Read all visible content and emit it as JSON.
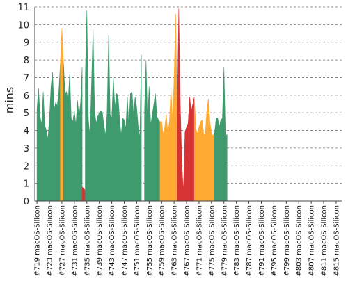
{
  "chart_data": {
    "type": "area",
    "title": "",
    "xlabel": "",
    "ylabel": "mins",
    "ylim": [
      0,
      11
    ],
    "yticks": [
      0,
      1,
      2,
      3,
      4,
      5,
      6,
      7,
      8,
      9,
      10,
      11
    ],
    "grid": true,
    "legend": "none",
    "xlim": [
      718.3,
      816.8
    ],
    "x_tick_labels": [
      {
        "x": 719,
        "label": "#719 macOS-Silicon"
      },
      {
        "x": 723,
        "label": "#723 macOS-Silicon"
      },
      {
        "x": 727,
        "label": "#727 macOS-Silicon"
      },
      {
        "x": 731,
        "label": "#731 macOS-Silicon"
      },
      {
        "x": 735,
        "label": "#735 macOS-Silicon"
      },
      {
        "x": 739,
        "label": "#739 macOS-Silicon"
      },
      {
        "x": 743,
        "label": "#743 macOS-Silicon"
      },
      {
        "x": 747,
        "label": "#747 macOS-Silicon"
      },
      {
        "x": 751,
        "label": "#751 macOS-Silicon"
      },
      {
        "x": 755,
        "label": "#755 macOS-Silicon"
      },
      {
        "x": 759,
        "label": "#759 macOS-Silicon"
      },
      {
        "x": 763,
        "label": "#763 macOS-Silicon"
      },
      {
        "x": 767,
        "label": "#767 macOS-Silicon"
      },
      {
        "x": 771,
        "label": "#771 macOS-Silicon"
      },
      {
        "x": 775,
        "label": "#775 macOS-Silicon"
      },
      {
        "x": 779,
        "label": "#779 macOS-Silicon"
      },
      {
        "x": 783,
        "label": "#783 macOS-Silicon"
      },
      {
        "x": 787,
        "label": "#787 macOS-Silicon"
      },
      {
        "x": 791,
        "label": "#791 macOS-Silicon"
      },
      {
        "x": 795,
        "label": "#795 macOS-Silicon"
      },
      {
        "x": 799,
        "label": "#799 macOS-Silicon"
      },
      {
        "x": 803,
        "label": "#803 macOS-Silicon"
      },
      {
        "x": 807,
        "label": "#807 macOS-Silicon"
      },
      {
        "x": 811,
        "label": "#811 macOS-Silicon"
      },
      {
        "x": 815,
        "label": "#815 macOS-Silicon"
      }
    ],
    "status_colors": {
      "success": "#3f9b6d",
      "unstable": "#ffaa33",
      "failure": "#d63434",
      "aborted": "#777777"
    },
    "series": [
      {
        "status": "success",
        "points": [
          [
            719,
            5.2
          ],
          [
            719.5,
            6.4
          ],
          [
            720,
            4.8
          ],
          [
            720.5,
            4.3
          ],
          [
            721,
            6.2
          ],
          [
            721.5,
            4.3
          ],
          [
            722,
            4.0
          ],
          [
            722.5,
            3.5
          ],
          [
            723,
            4.7
          ],
          [
            723.5,
            6.5
          ],
          [
            724,
            7.3
          ],
          [
            724.5,
            5.2
          ],
          [
            725,
            5.6
          ],
          [
            725.5,
            5.4
          ],
          [
            726,
            6.2
          ],
          [
            726.5,
            7.8
          ]
        ]
      },
      {
        "status": "unstable",
        "points": [
          [
            726.5,
            7.8
          ],
          [
            727,
            9.8
          ],
          [
            727.5,
            7.8
          ]
        ]
      },
      {
        "status": "success",
        "points": [
          [
            727.5,
            7.8
          ],
          [
            728,
            6.1
          ],
          [
            728.5,
            6.2
          ],
          [
            729,
            5.7
          ],
          [
            729.5,
            7.2
          ],
          [
            730,
            4.7
          ],
          [
            730.5,
            4.5
          ],
          [
            731,
            5.1
          ],
          [
            731.5,
            4.3
          ],
          [
            732,
            5.7
          ],
          [
            732.5,
            4.8
          ],
          [
            733,
            5.6
          ],
          [
            733.5,
            7.6
          ]
        ]
      },
      {
        "status": "failure",
        "points": [
          [
            733.5,
            0.8
          ],
          [
            734,
            0.7
          ],
          [
            734.5,
            0.6
          ]
        ]
      },
      {
        "status": "success",
        "points": [
          [
            734.5,
            7.0
          ],
          [
            735,
            10.8
          ],
          [
            735.5,
            4.6
          ],
          [
            736,
            3.7
          ],
          [
            736.5,
            6.6
          ],
          [
            737,
            9.8
          ],
          [
            737.5,
            5.1
          ],
          [
            738,
            4.4
          ],
          [
            738.5,
            4.8
          ],
          [
            739,
            5.0
          ],
          [
            739.5,
            5.1
          ],
          [
            740,
            5.0
          ],
          [
            740.5,
            4.3
          ],
          [
            741,
            3.7
          ],
          [
            741.5,
            5.0
          ],
          [
            742,
            9.4
          ],
          [
            742.5,
            4.9
          ],
          [
            743,
            4.7
          ],
          [
            743.5,
            7.0
          ],
          [
            744,
            5.3
          ],
          [
            744.5,
            6.1
          ],
          [
            745,
            6.0
          ],
          [
            745.5,
            4.7
          ],
          [
            746,
            3.7
          ],
          [
            746.5,
            4.7
          ],
          [
            747,
            4.6
          ],
          [
            747.5,
            4.1
          ],
          [
            748,
            5.9
          ],
          [
            748.5,
            4.2
          ],
          [
            749,
            6.1
          ],
          [
            749.5,
            6.2
          ],
          [
            750,
            4.9
          ],
          [
            750.5,
            5.9
          ],
          [
            751,
            5.3
          ],
          [
            751.5,
            4.2
          ],
          [
            752,
            3.6
          ],
          [
            752.5,
            8.3
          ]
        ]
      },
      {
        "status": "aborted",
        "points": [
          [
            752.5,
            0.0
          ],
          [
            753,
            0.0
          ],
          [
            753.5,
            0.0
          ]
        ]
      },
      {
        "status": "success",
        "points": [
          [
            753.5,
            5.0
          ],
          [
            754,
            8.0
          ],
          [
            754.5,
            4.5
          ],
          [
            755,
            6.5
          ],
          [
            755.5,
            4.3
          ],
          [
            756,
            4.9
          ],
          [
            756.5,
            5.5
          ],
          [
            757,
            6.1
          ],
          [
            757.5,
            4.8
          ],
          [
            758,
            4.6
          ],
          [
            758.5,
            4.5
          ]
        ]
      },
      {
        "status": "unstable",
        "points": [
          [
            758.5,
            4.5
          ],
          [
            759,
            4.5
          ],
          [
            759.5,
            3.8
          ],
          [
            760,
            4.2
          ],
          [
            760.5,
            4.9
          ],
          [
            761,
            3.9
          ],
          [
            761.5,
            4.5
          ],
          [
            762,
            6.4
          ],
          [
            762.5,
            4.6
          ],
          [
            763,
            7.0
          ],
          [
            763.5,
            10.6
          ],
          [
            764,
            4.9
          ]
        ]
      },
      {
        "status": "failure",
        "points": [
          [
            764,
            4.9
          ],
          [
            764.5,
            10.9
          ],
          [
            765,
            5.4
          ],
          [
            765.5,
            2.1
          ],
          [
            766,
            0.5
          ],
          [
            766.5,
            3.9
          ],
          [
            767,
            4.2
          ],
          [
            767.5,
            4.4
          ],
          [
            768,
            5.9
          ],
          [
            768.5,
            5.1
          ],
          [
            769,
            5.5
          ],
          [
            769.5,
            5.9
          ]
        ]
      },
      {
        "status": "unstable",
        "points": [
          [
            769.5,
            5.9
          ],
          [
            770,
            4.1
          ],
          [
            770.5,
            3.8
          ],
          [
            771,
            4.2
          ],
          [
            771.5,
            4.5
          ],
          [
            772,
            4.6
          ],
          [
            772.5,
            3.8
          ],
          [
            773,
            3.8
          ],
          [
            773.5,
            5.1
          ],
          [
            774,
            5.8
          ],
          [
            774.5,
            4.5
          ],
          [
            775,
            3.8
          ],
          [
            775.5,
            3.7
          ],
          [
            776,
            3.9
          ]
        ]
      },
      {
        "status": "success",
        "points": [
          [
            776,
            3.9
          ],
          [
            776.5,
            4.7
          ],
          [
            777,
            4.7
          ],
          [
            777.5,
            4.2
          ],
          [
            778,
            4.6
          ],
          [
            778.5,
            4.7
          ],
          [
            779,
            7.6
          ],
          [
            779.5,
            3.6
          ],
          [
            780,
            3.8
          ]
        ]
      }
    ]
  }
}
